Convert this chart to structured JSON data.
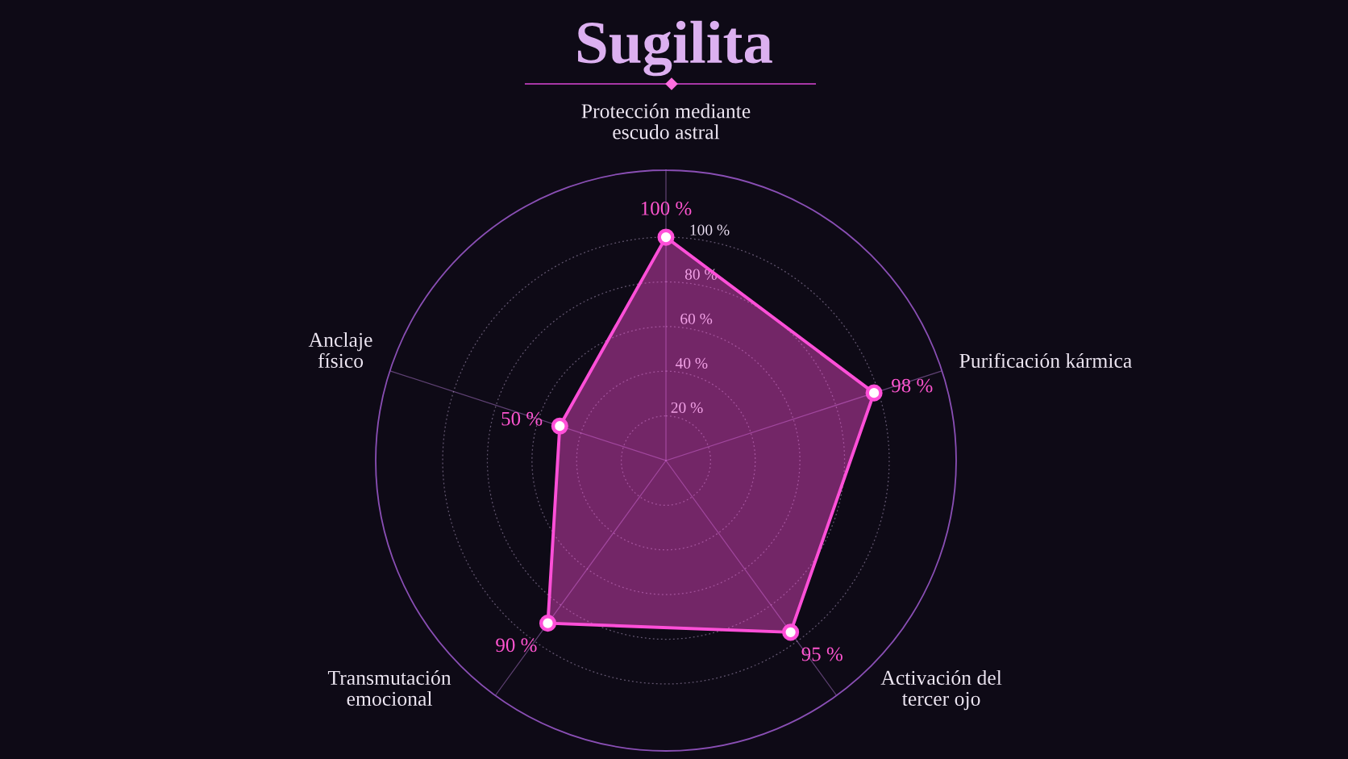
{
  "chart_data": {
    "type": "radar",
    "title": "Sugilita",
    "categories": [
      "Protección mediante\nescudo astral",
      "Purificación kármica",
      "Activación del\ntercer ojo",
      "Transmutación\nemocional",
      "Anclaje\nfísico"
    ],
    "series": [
      {
        "color": "#ff4fd8",
        "values": [
          100,
          98,
          95,
          90,
          50
        ],
        "value_labels": [
          "100 %",
          "98 %",
          "95 %",
          "90 %",
          "50 %"
        ]
      }
    ],
    "ylim": [
      0,
      130
    ],
    "yticks": [
      {
        "value": 20,
        "label": "20 %"
      },
      {
        "value": 40,
        "label": "40 %"
      },
      {
        "value": 60,
        "label": "60 %"
      },
      {
        "value": 80,
        "label": "80 %"
      },
      {
        "value": 100,
        "label": "100 %"
      }
    ],
    "grid": true,
    "marker": "circle",
    "line_style": "solid"
  }
}
